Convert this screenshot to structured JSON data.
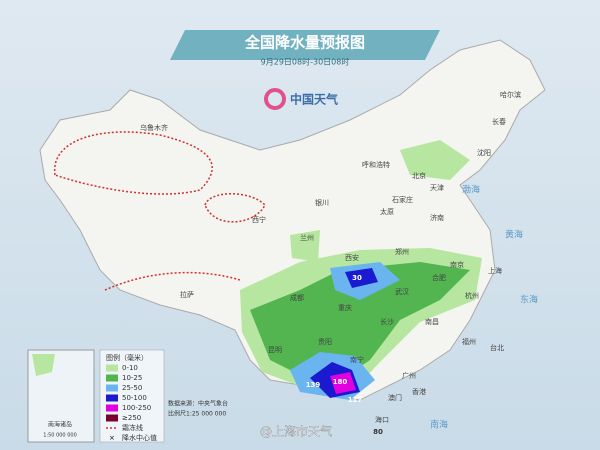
{
  "header": {
    "title": "全国降水量预报图",
    "subtitle": "9月29日08时-30日08时",
    "logo": "中国天气"
  },
  "cities": [
    "乌鲁木齐",
    "哈尔滨",
    "长春",
    "沈阳",
    "呼和浩特",
    "北京",
    "天津",
    "石家庄",
    "太原",
    "济南",
    "银川",
    "西宁",
    "兰州",
    "郑州",
    "西安",
    "合肥",
    "南京",
    "上海",
    "杭州",
    "武汉",
    "成都",
    "重庆",
    "长沙",
    "南昌",
    "贵阳",
    "昆明",
    "福州",
    "台北",
    "南宁",
    "广州",
    "香港",
    "澳门",
    "海口",
    "拉萨"
  ],
  "seas": [
    "渤海",
    "黄海",
    "东海",
    "南海"
  ],
  "centers": [
    "30",
    "139",
    "180",
    "117",
    "80"
  ],
  "legend": {
    "title": "图例（毫米）",
    "items": [
      "0-10",
      "10-25",
      "25-50",
      "50-100",
      "100-250",
      "≥250",
      "霜冻线",
      "降水中心值"
    ]
  },
  "inset": {
    "title": "南海诸岛",
    "scale": "1:50 000 000"
  },
  "footer": {
    "source": "数据来源：中央气象台",
    "scale": "比例尺1:25 000 000",
    "watermark": "@上海市天气"
  }
}
